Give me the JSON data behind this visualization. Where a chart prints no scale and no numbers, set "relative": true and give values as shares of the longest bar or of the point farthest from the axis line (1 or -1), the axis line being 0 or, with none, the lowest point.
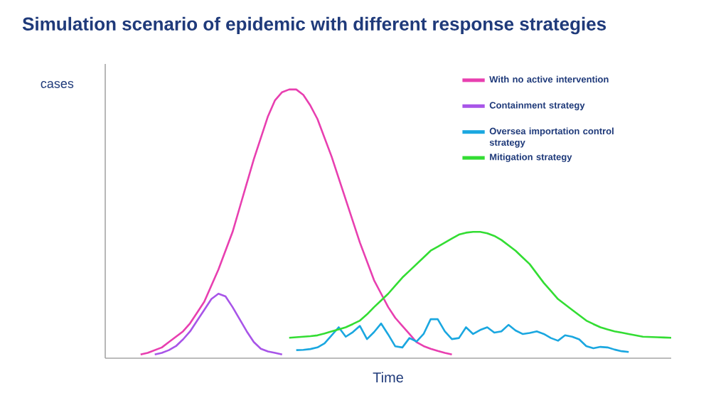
{
  "chart_data": {
    "type": "line",
    "title": "Simulation scenario of epidemic with different response strategies",
    "xlabel": "Time",
    "ylabel": "cases",
    "relative": true,
    "legend": "top right",
    "marker": "none",
    "line_style": "solid",
    "categories": [
      null,
      null,
      null,
      null,
      null,
      null,
      null,
      null,
      null,
      null,
      null,
      null,
      null,
      null,
      null,
      null,
      null,
      null,
      null,
      null,
      null,
      null,
      null,
      null,
      null,
      null,
      null,
      null,
      null,
      null,
      null,
      null,
      null,
      null,
      null,
      null,
      null,
      null,
      null,
      null,
      null,
      null,
      null,
      null,
      null,
      null,
      null,
      null,
      null,
      null,
      null,
      null,
      null,
      null,
      null,
      null,
      null,
      null,
      null,
      null,
      null,
      null,
      null,
      null,
      null,
      null,
      null,
      null,
      null,
      null,
      null,
      null,
      null,
      null,
      null,
      null,
      null,
      null,
      null,
      null,
      null
    ],
    "series": [
      {
        "name": "With no active intervention",
        "color": "#e83fb0",
        "values": [
          null,
          null,
          null,
          null,
          null,
          0.014,
          0.02,
          0.03,
          0.04,
          0.06,
          0.08,
          0.1,
          0.13,
          0.17,
          0.21,
          0.27,
          0.33,
          0.4,
          0.47,
          0.56,
          0.65,
          0.74,
          0.82,
          0.9,
          0.96,
          0.99,
          1.0,
          1.0,
          0.98,
          0.94,
          0.89,
          0.82,
          0.75,
          0.67,
          0.59,
          0.51,
          0.43,
          0.36,
          0.29,
          0.24,
          0.19,
          0.15,
          0.12,
          0.09,
          0.06,
          0.045,
          0.035,
          0.027,
          0.02,
          0.014,
          null,
          null,
          null,
          null,
          null,
          null,
          null,
          null,
          null,
          null,
          null,
          null,
          null,
          null,
          null,
          null,
          null,
          null,
          null,
          null,
          null,
          null,
          null,
          null,
          null,
          null,
          null,
          null,
          null,
          null,
          null
        ]
      },
      {
        "name": "Containment strategy",
        "color": "#a855e8",
        "values": [
          null,
          null,
          null,
          null,
          null,
          null,
          null,
          0.014,
          0.02,
          0.03,
          0.045,
          0.07,
          0.1,
          0.14,
          0.18,
          0.22,
          0.24,
          0.23,
          0.19,
          0.145,
          0.1,
          0.06,
          0.035,
          0.025,
          0.02,
          0.014,
          null,
          null,
          null,
          null,
          null,
          null,
          null,
          null,
          null,
          null,
          null,
          null,
          null,
          null,
          null,
          null,
          null,
          null,
          null,
          null,
          null,
          null,
          null,
          null,
          null,
          null,
          null,
          null,
          null,
          null,
          null,
          null,
          null,
          null,
          null,
          null,
          null,
          null,
          null,
          null,
          null,
          null,
          null,
          null,
          null,
          null,
          null,
          null,
          null,
          null,
          null,
          null,
          null,
          null,
          null
        ]
      },
      {
        "name": "Oversea importation control strategy",
        "color": "#1aa7e0",
        "values": [
          null,
          null,
          null,
          null,
          null,
          null,
          null,
          null,
          null,
          null,
          null,
          null,
          null,
          null,
          null,
          null,
          null,
          null,
          null,
          null,
          null,
          null,
          null,
          null,
          null,
          null,
          null,
          0.03,
          0.031,
          0.034,
          0.04,
          0.055,
          0.085,
          0.115,
          0.08,
          0.097,
          0.12,
          0.071,
          0.097,
          0.129,
          0.088,
          0.044,
          0.04,
          0.075,
          0.062,
          0.09,
          0.145,
          0.145,
          0.1,
          0.071,
          0.075,
          0.115,
          0.09,
          0.105,
          0.115,
          0.095,
          0.1,
          0.124,
          0.103,
          0.09,
          0.094,
          0.1,
          0.09,
          0.075,
          0.065,
          0.085,
          0.08,
          0.07,
          0.045,
          0.037,
          0.042,
          0.04,
          0.032,
          0.026,
          0.023,
          null,
          null,
          null,
          null,
          null,
          null
        ]
      },
      {
        "name": "Mitigation strategy",
        "color": "#33dd33",
        "values": [
          null,
          null,
          null,
          null,
          null,
          null,
          null,
          null,
          null,
          null,
          null,
          null,
          null,
          null,
          null,
          null,
          null,
          null,
          null,
          null,
          null,
          null,
          null,
          null,
          null,
          null,
          0.076,
          0.078,
          0.08,
          0.082,
          0.085,
          0.092,
          0.1,
          0.107,
          0.115,
          0.127,
          0.14,
          0.163,
          0.19,
          0.215,
          0.24,
          0.27,
          0.3,
          0.325,
          0.35,
          0.375,
          0.4,
          0.415,
          0.43,
          0.445,
          0.46,
          0.467,
          0.47,
          0.47,
          0.465,
          0.455,
          0.44,
          0.42,
          0.4,
          0.375,
          0.35,
          0.315,
          0.28,
          0.25,
          0.22,
          0.2,
          0.18,
          0.16,
          0.14,
          0.127,
          0.115,
          0.107,
          0.1,
          0.095,
          0.09,
          0.085,
          0.08,
          0.079,
          0.078,
          0.077,
          0.076
        ]
      }
    ]
  }
}
